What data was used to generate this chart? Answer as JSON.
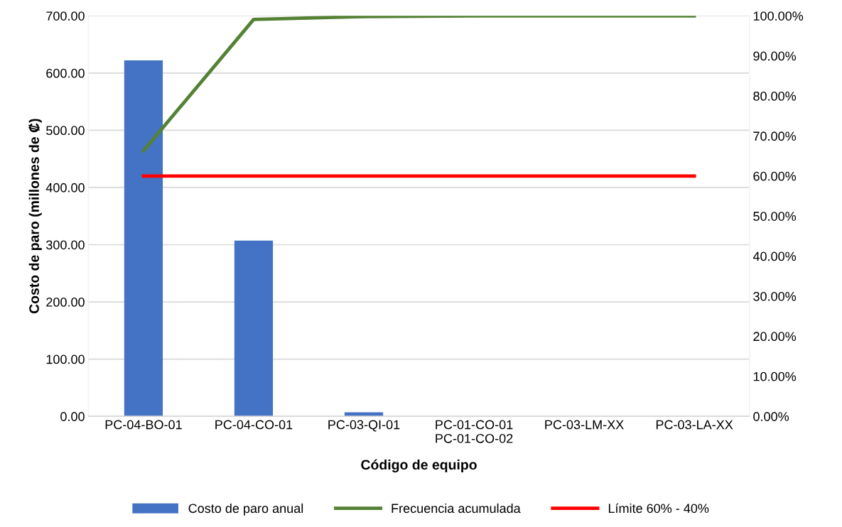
{
  "chart_data": {
    "type": "bar",
    "xlabel": "Código de equipo",
    "ylabel": "Costo de paro (millones de ₡)",
    "categories": [
      "PC-04-BO-01",
      "PC-04-CO-01",
      "PC-03-QI-01",
      "PC-01-CO-01\nPC-01-CO-02",
      "PC-03-LM-XX",
      "PC-03-LA-XX"
    ],
    "series": [
      {
        "name": "Costo de paro anual",
        "color": "#4472c4",
        "values": [
          622,
          307,
          7,
          0,
          0,
          0
        ]
      },
      {
        "name": "Frecuencia acumulada",
        "type": "line",
        "axis": "y2",
        "color": "#548235",
        "values": [
          66.3,
          99.1,
          99.8,
          100,
          100,
          100
        ]
      },
      {
        "name": "Límite 60% - 40%",
        "type": "line",
        "axis": "y2",
        "color": "#ff0000",
        "values": [
          60,
          60,
          60,
          60,
          60,
          60
        ]
      }
    ],
    "ylim": [
      0,
      700
    ],
    "yticks": [
      {
        "value": 0,
        "label": "0.00"
      },
      {
        "value": 100,
        "label": "100.00"
      },
      {
        "value": 200,
        "label": "200.00"
      },
      {
        "value": 300,
        "label": "300.00"
      },
      {
        "value": 400,
        "label": "400.00"
      },
      {
        "value": 500,
        "label": "500.00"
      },
      {
        "value": 600,
        "label": "600.00"
      },
      {
        "value": 700,
        "label": "700.00"
      }
    ],
    "y2lim": [
      0,
      100
    ],
    "y2ticks": [
      {
        "value": 0,
        "label": "0.00%"
      },
      {
        "value": 10,
        "label": "10.00%"
      },
      {
        "value": 20,
        "label": "20.00%"
      },
      {
        "value": 30,
        "label": "30.00%"
      },
      {
        "value": 40,
        "label": "40.00%"
      },
      {
        "value": 50,
        "label": "50.00%"
      },
      {
        "value": 60,
        "label": "60.00%"
      },
      {
        "value": 70,
        "label": "70.00%"
      },
      {
        "value": 80,
        "label": "80.00%"
      },
      {
        "value": 90,
        "label": "90.00%"
      },
      {
        "value": 100,
        "label": "100.00%"
      }
    ],
    "grid": "y",
    "legend": "bottom",
    "marker": "none"
  }
}
